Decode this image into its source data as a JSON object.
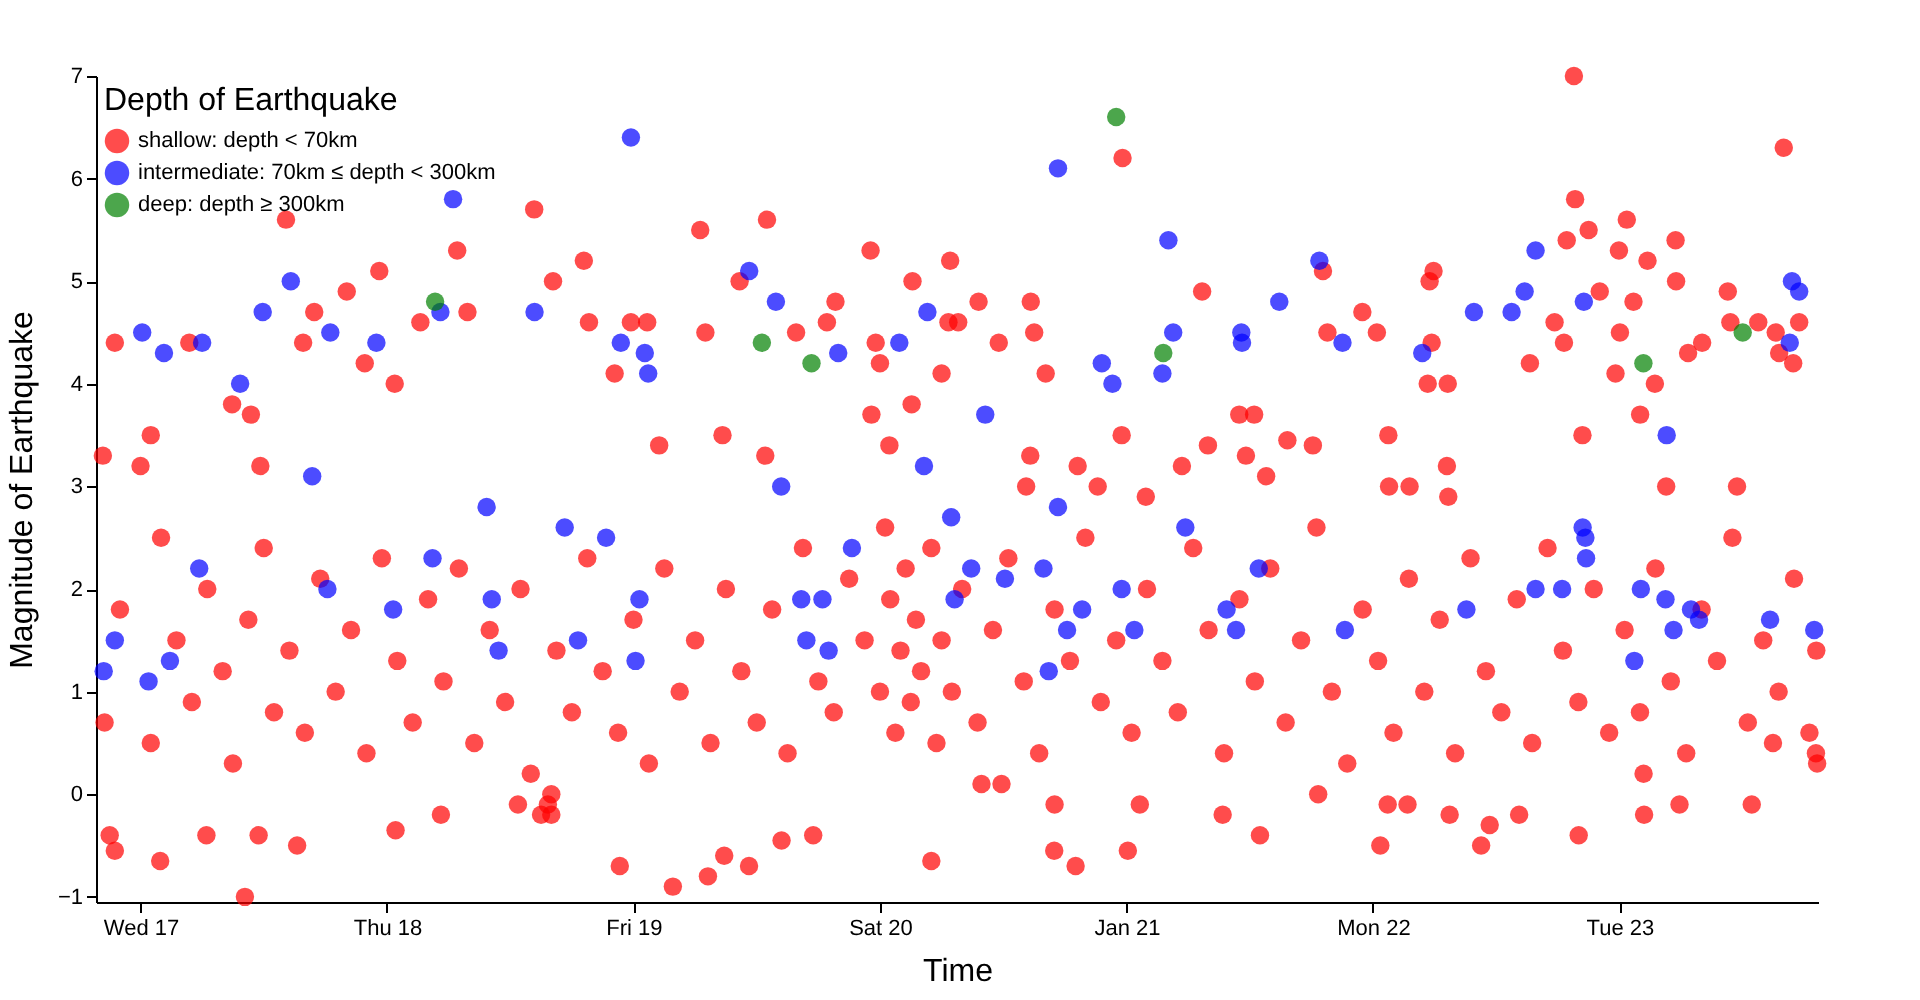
{
  "chart_data": {
    "type": "scatter",
    "legend_title": "Depth of Earthquake",
    "xlabel": "Time",
    "ylabel": "Magnitude of Earthquake",
    "xlim": [
      "--01-16T19:40",
      "--01-23T19:20"
    ],
    "xticks": [
      {
        "value": "--01-17",
        "label": "Wed 17"
      },
      {
        "value": "--01-18",
        "label": "Thu 18"
      },
      {
        "value": "--01-19",
        "label": "Fri 19"
      },
      {
        "value": "--01-20",
        "label": "Sat 20"
      },
      {
        "value": "--01-21",
        "label": "Jan 21"
      },
      {
        "value": "--01-22",
        "label": "Mon 22"
      },
      {
        "value": "--01-23",
        "label": "Tue 23"
      }
    ],
    "ylim": [
      -1.05,
      7
    ],
    "yticks": [
      -1,
      0,
      1,
      2,
      3,
      4,
      5,
      6,
      7
    ],
    "marker": "circle",
    "legend": "top left",
    "series": [
      {
        "name": "shallow: depth < 70km",
        "color": "#ff0000",
        "x": [
          "--01-16T21:30",
          "--01-17T04:45",
          "--01-17T14:10",
          "--01-17T08:55",
          "--01-17T10:45",
          "--01-17T01:00",
          "--01-16T20:20",
          "--01-17T00:00",
          "--01-17T11:40",
          "--01-17T16:55",
          "--01-17T15:50",
          "--01-17T20:05",
          "--01-17T23:15",
          "--01-17T21:50",
          "--01-18T00:45",
          "--01-18T03:15",
          "--01-18T06:50",
          "--01-18T07:50",
          "--01-18T14:20",
          "--01-18T16:10",
          "--01-18T19:10",
          "--01-18T19:40",
          "--01-18T22:10",
          "--01-18T23:45",
          "--01-19T01:20",
          "--01-19T02:30",
          "--01-19T06:30",
          "--01-19T07:00",
          "--01-19T08:40",
          "--01-19T10:20",
          "--01-19T13:00",
          "--01-19T12:50",
          "--01-19T15:50",
          "--01-19T19:40",
          "--01-19T18:50",
          "--01-19T23:05",
          "--01-19T23:35",
          "--01-20T00:00",
          "--01-19T23:10",
          "--01-20T00:55",
          "--01-20T03:05",
          "--01-20T03:10",
          "--01-20T06:50",
          "--01-20T06:00",
          "--01-20T06:40",
          "--01-17T10:10",
          "--01-17T01:55",
          "--01-16T21:00",
          "--01-16T21:30",
          "--01-17T06:25",
          "--01-17T11:30",
          "--01-17T15:15",
          "--01-18T00:50",
          "--01-18T05:15",
          "--01-18T22:40",
          "--01-19T03:50",
          "--01-19T07:15",
          "--01-19T08:50",
          "--01-19T11:15",
          "--01-19T14:25",
          "--01-19T17:30",
          "--01-20T05:00",
          "--01-18T15:40",
          "--01-18T16:00",
          "--01-18T12:45",
          "--01-22T19:34",
          "--01-20T23:37",
          "--01-23T16:00",
          "--01-22T19:41",
          "--01-22T18:52",
          "--01-22T21:00",
          "--01-23T00:43",
          "--01-23T05:28",
          "--01-23T02:44",
          "--01-22T23:57",
          "--01-22T22:05",
          "--01-23T01:22",
          "--01-23T00:03",
          "--01-22T23:37",
          "--01-23T03:27",
          "--01-23T02:01",
          "--01-23T05:31",
          "--01-23T06:41",
          "--01-23T08:03",
          "--01-23T10:33",
          "--01-23T10:48",
          "--01-23T13:31",
          "--01-23T15:13",
          "--01-23T16:55",
          "--01-23T17:30",
          "--01-23T15:33",
          "--01-22T17:41",
          "--01-22T18:36",
          "--01-22T15:17",
          "--01-22T20:24",
          "--01-23T04:33",
          "--01-23T11:27",
          "--01-22T05:54",
          "--01-22T05:31",
          "--01-22T05:43",
          "--01-22T05:20",
          "--01-22T07:17",
          "--01-22T01:30",
          "--01-22T03:34",
          "--01-22T07:12",
          "--01-22T07:20",
          "--01-21T22:58",
          "--01-22T00:23",
          "--01-21T19:08",
          "--01-21T19:34",
          "--01-21T07:22",
          "--01-20T14:41",
          "--01-20T09:36",
          "--01-20T07:37",
          "--01-20T11:34",
          "--01-20T15:01",
          "--01-20T16:08",
          "--01-20T14:38",
          "--01-20T14:14",
          "--01-20T19:15",
          "--01-20T21:12",
          "--01-20T23:32",
          "--01-21T01:53",
          "--01-21T05:24",
          "--01-21T07:56",
          "--01-21T10:59",
          "--01-21T12:26",
          "--01-21T11:38",
          "--01-21T13:36",
          "--01-21T15:40",
          "--01-21T18:09",
          "--01-22T01:34",
          "--01-20T19:03",
          "--01-20T16:58",
          "--01-21T00:08",
          "--01-20T17:00",
          "--01-21T01:18",
          "--01-20T11:50",
          "--01-20T09:53",
          "--01-21T09:22",
          "--01-21T13:00",
          "--01-22T00:43",
          "--01-22T07:28",
          "--01-22T10:32",
          "--01-22T11:22",
          "--01-22T14:14",
          "--01-22T20:02",
          "--01-23T02:24",
          "--01-23T05:51",
          "--01-23T12:53",
          "--01-23T19:15",
          "--01-23T19:08",
          "--01-23T14:57",
          "--01-23T02:21",
          "--01-22T03:22",
          "--01-22T01:26",
          "--01-21T18:40",
          "--01-16T20:30",
          "--01-16T22:00",
          "--01-17T01:00",
          "--01-17T02:00",
          "--01-17T03:30",
          "--01-17T05:00",
          "--01-17T06:30",
          "--01-17T08:00",
          "--01-17T09:00",
          "--01-17T10:30",
          "--01-17T12:00",
          "--01-17T13:00",
          "--01-17T14:30",
          "--01-17T16:00",
          "--01-17T17:30",
          "--01-17T19:00",
          "--01-17T20:30",
          "--01-17T22:00",
          "--01-17T23:30",
          "--01-18T01:00",
          "--01-18T02:30",
          "--01-18T04:00",
          "--01-18T05:30",
          "--01-18T07:00",
          "--01-18T08:30",
          "--01-18T10:00",
          "--01-18T11:30",
          "--01-18T13:00",
          "--01-18T14:00",
          "--01-18T15:00",
          "--01-18T16:00",
          "--01-18T16:30",
          "--01-18T18:00",
          "--01-18T19:30",
          "--01-18T21:00",
          "--01-18T22:30",
          "--01-19T00:00",
          "--01-19T01:30",
          "--01-19T03:00",
          "--01-19T04:30",
          "--01-19T06:00",
          "--01-19T07:30",
          "--01-19T09:00",
          "--01-19T10:30",
          "--01-19T12:00",
          "--01-19T13:30",
          "--01-19T15:00",
          "--01-19T16:30",
          "--01-19T18:00",
          "--01-19T19:30",
          "--01-19T21:00",
          "--01-19T22:30",
          "--01-20T00:00",
          "--01-20T00:30",
          "--01-20T01:00",
          "--01-20T01:30",
          "--01-20T02:00",
          "--01-20T02:30",
          "--01-20T03:00",
          "--01-20T03:30",
          "--01-20T04:00",
          "--01-20T05:00",
          "--01-20T05:30",
          "--01-20T06:00",
          "--01-20T07:00",
          "--01-20T08:00",
          "--01-20T09:30",
          "--01-20T11:00",
          "--01-20T12:30",
          "--01-20T14:00",
          "--01-20T15:30",
          "--01-20T17:00",
          "--01-20T18:30",
          "--01-20T20:00",
          "--01-20T21:30",
          "--01-20T23:00",
          "--01-21T00:30",
          "--01-21T02:00",
          "--01-21T03:30",
          "--01-21T05:00",
          "--01-21T06:30",
          "--01-21T08:00",
          "--01-21T09:30",
          "--01-21T11:00",
          "--01-21T12:30",
          "--01-21T14:00",
          "--01-21T15:30",
          "--01-21T17:00",
          "--01-21T18:30",
          "--01-21T20:00",
          "--01-21T21:30",
          "--01-21T23:00",
          "--01-22T00:30",
          "--01-22T02:00",
          "--01-22T03:30",
          "--01-22T05:00",
          "--01-22T06:30",
          "--01-22T08:00",
          "--01-22T09:30",
          "--01-22T11:00",
          "--01-22T12:30",
          "--01-22T14:00",
          "--01-22T15:30",
          "--01-22T17:00",
          "--01-22T18:30",
          "--01-22T20:00",
          "--01-22T21:30",
          "--01-22T23:00",
          "--01-23T00:30",
          "--01-23T02:00",
          "--01-23T03:30",
          "--01-23T05:00",
          "--01-23T06:30",
          "--01-23T08:00",
          "--01-23T09:30",
          "--01-23T11:00",
          "--01-23T12:30",
          "--01-23T14:00",
          "--01-23T15:30",
          "--01-23T17:00",
          "--01-23T18:30",
          "--01-23T19:10"
        ],
        "values": [
          4.4,
          4.4,
          5.6,
          3.8,
          3.7,
          3.5,
          3.3,
          3.2,
          3.2,
          4.7,
          4.4,
          4.9,
          5.1,
          4.2,
          4.0,
          4.6,
          5.3,
          4.7,
          5.7,
          5.0,
          5.2,
          4.6,
          4.1,
          4.6,
          4.6,
          3.4,
          5.5,
          4.5,
          3.5,
          5.0,
          5.6,
          3.3,
          4.5,
          4.8,
          4.6,
          5.3,
          4.4,
          4.2,
          3.7,
          3.4,
          3.8,
          5.0,
          5.2,
          4.1,
          4.6,
          -1.0,
          -0.65,
          -0.4,
          -0.55,
          -0.4,
          -0.4,
          -0.5,
          -0.35,
          -0.2,
          -0.7,
          -0.9,
          -0.8,
          -0.6,
          -0.7,
          -0.45,
          -0.4,
          -0.65,
          -0.1,
          -0.2,
          -0.1,
          7.0,
          6.2,
          6.3,
          5.8,
          5.4,
          5.5,
          5.6,
          5.4,
          5.2,
          5.3,
          4.9,
          4.8,
          4.5,
          4.1,
          4.0,
          3.7,
          5.0,
          4.3,
          4.4,
          4.9,
          4.6,
          4.6,
          4.5,
          4.2,
          4.6,
          4.3,
          4.6,
          4.4,
          4.2,
          3.5,
          3.0,
          3.0,
          5.1,
          5.0,
          4.4,
          4.0,
          4.0,
          3.5,
          3.0,
          3.2,
          2.9,
          4.7,
          4.5,
          5.1,
          4.5,
          4.9,
          4.8,
          4.8,
          4.6,
          4.4,
          4.5,
          4.1,
          3.3,
          3.0,
          3.2,
          3.0,
          3.5,
          2.9,
          3.2,
          3.4,
          3.7,
          3.7,
          3.3,
          3.1,
          3.45,
          3.4,
          3.0,
          -0.7,
          -0.55,
          -0.55,
          -0.1,
          -0.1,
          0.1,
          0.1,
          -0.2,
          -0.4,
          -0.5,
          -0.2,
          -0.5,
          -0.3,
          -0.2,
          -0.4,
          -0.2,
          -0.1,
          -0.1,
          0.3,
          0.4,
          0.5,
          0.2,
          -0.1,
          -0.1,
          0.0,
          0.7,
          1.8,
          0.5,
          2.5,
          1.5,
          0.9,
          2.0,
          1.2,
          0.3,
          1.7,
          2.4,
          0.8,
          1.4,
          0.6,
          2.1,
          1.0,
          1.6,
          0.4,
          2.3,
          1.3,
          0.7,
          1.9,
          1.1,
          2.2,
          0.5,
          1.6,
          0.9,
          2.0,
          0.2,
          -0.2,
          0.0,
          1.4,
          0.8,
          2.3,
          1.2,
          0.6,
          1.7,
          0.3,
          2.2,
          1.0,
          1.5,
          0.5,
          2.0,
          1.2,
          0.7,
          1.8,
          0.4,
          2.4,
          1.1,
          0.8,
          2.1,
          1.5,
          1.0,
          2.6,
          1.9,
          0.6,
          1.4,
          2.2,
          0.9,
          1.7,
          1.2,
          2.4,
          0.5,
          1.5,
          1.0,
          2.0,
          0.7,
          1.6,
          2.3,
          1.1,
          0.4,
          1.8,
          1.3,
          2.5,
          0.9,
          1.5,
          0.6,
          2.0,
          1.3,
          0.8,
          2.4,
          1.6,
          0.4,
          1.9,
          1.1,
          2.2,
          0.7,
          1.5,
          2.6,
          1.0,
          0.3,
          1.8,
          1.3,
          0.6,
          2.1,
          1.0,
          1.7,
          0.4,
          2.3,
          1.2,
          0.8,
          1.9,
          0.5,
          2.4,
          1.4,
          0.9,
          2.0,
          0.6,
          1.6,
          0.8,
          2.2,
          1.1,
          0.4,
          1.8,
          1.3,
          2.5,
          0.7,
          1.5,
          1.0,
          2.1,
          0.6,
          1.4
        ]
      },
      {
        "name": "intermediate: 70km ≤ depth < 300km",
        "color": "#0000ff",
        "x": [
          "--01-17T00:10",
          "--01-17T02:17",
          "--01-17T06:00",
          "--01-17T09:42",
          "--01-17T11:54",
          "--01-17T14:38",
          "--01-17T18:29",
          "--01-17T22:58",
          "--01-18T06:26",
          "--01-18T05:12",
          "--01-18T14:22",
          "--01-18T23:45",
          "--01-18T22:46",
          "--01-19T01:06",
          "--01-19T01:26",
          "--01-19T11:16",
          "--01-19T13:52",
          "--01-19T19:56",
          "--01-20T01:53",
          "--01-20T04:37",
          "--01-17T16:43",
          "--01-19T14:23",
          "--01-20T04:17",
          "--01-18T09:42",
          "--01-18T17:18",
          "--01-18T21:20",
          "--01-20T06:56",
          "--01-19T21:16",
          "--01-18T04:26",
          "--01-17T05:43",
          "--01-17T18:12",
          "--01-18T10:12",
          "--01-19T00:35",
          "--01-19T16:20",
          "--01-19T18:24",
          "--01-20T07:16",
          "--01-16T21:30",
          "--01-16T20:25",
          "--01-17T00:47",
          "--01-17T02:52",
          "--01-18T00:36",
          "--01-18T10:52",
          "--01-18T18:36",
          "--01-19T00:12",
          "--01-19T16:50",
          "--01-19T19:00",
          "--01-20T17:20",
          "--01-21T04:05",
          "--01-21T04:33",
          "--01-21T03:30",
          "--01-20T21:36",
          "--01-20T22:38",
          "--01-20T10:15",
          "--01-21T18:47",
          "--01-21T14:53",
          "--01-21T11:11",
          "--01-21T11:15",
          "--01-21T21:02",
          "--01-22T04:48",
          "--01-22T09:50",
          "--01-22T13:30",
          "--01-22T14:46",
          "--01-22T15:50",
          "--01-22T20:32",
          "--01-23T04:36",
          "--01-23T16:48",
          "--01-23T17:30",
          "--01-23T16:35",
          "--01-20T17:20",
          "--01-21T05:44",
          "--01-22T20:25",
          "--01-22T20:41",
          "--01-22T20:45",
          "--01-20T08:53",
          "--01-20T15:55",
          "--01-21T12:53",
          "--01-20T12:10",
          "--01-20T23:32",
          "--01-22T15:50",
          "--01-22T18:25",
          "--01-23T02:05",
          "--01-23T04:29",
          "--01-23T06:58",
          "--01-23T07:45",
          "--01-20T19:41",
          "--01-21T09:45",
          "--01-22T09:06",
          "--01-23T14:40",
          "--01-20T18:13",
          "--01-21T00:46",
          "--01-21T21:16",
          "--01-21T10:40",
          "--01-23T18:58",
          "--01-23T05:16",
          "--01-20T16:26",
          "--01-23T01:27"
        ],
        "values": [
          4.5,
          4.3,
          4.4,
          4.0,
          4.7,
          5.0,
          4.5,
          4.4,
          5.8,
          4.7,
          4.7,
          6.4,
          4.4,
          4.3,
          4.1,
          5.1,
          4.8,
          4.3,
          4.4,
          4.7,
          3.1,
          3.0,
          3.2,
          2.8,
          2.6,
          2.5,
          2.7,
          2.4,
          2.3,
          2.2,
          2.0,
          1.9,
          1.9,
          1.9,
          1.9,
          1.9,
          1.5,
          1.2,
          1.1,
          1.3,
          1.8,
          1.4,
          1.5,
          1.3,
          1.5,
          1.4,
          6.1,
          5.4,
          4.5,
          4.1,
          4.2,
          4.0,
          3.7,
          5.2,
          4.8,
          4.5,
          4.4,
          4.4,
          4.3,
          4.7,
          4.7,
          4.9,
          5.3,
          4.8,
          3.5,
          5.0,
          4.9,
          4.4,
          2.8,
          2.6,
          2.6,
          2.5,
          2.3,
          2.2,
          2.2,
          2.2,
          2.1,
          2.0,
          2.0,
          2.0,
          2.0,
          1.9,
          1.8,
          1.7,
          1.8,
          1.8,
          1.8,
          1.7,
          1.6,
          1.6,
          1.6,
          1.6,
          1.6,
          1.6,
          1.2,
          1.3
        ]
      },
      {
        "name": "deep: depth ≥ 300km",
        "color": "#008000",
        "x": [
          "--01-18T04:41",
          "--01-19T12:30",
          "--01-19T17:20",
          "--01-20T23:00",
          "--01-21T03:35",
          "--01-23T02:20",
          "--01-23T12:00"
        ],
        "values": [
          4.8,
          4.4,
          4.2,
          6.6,
          4.3,
          4.2,
          4.5
        ]
      }
    ]
  }
}
